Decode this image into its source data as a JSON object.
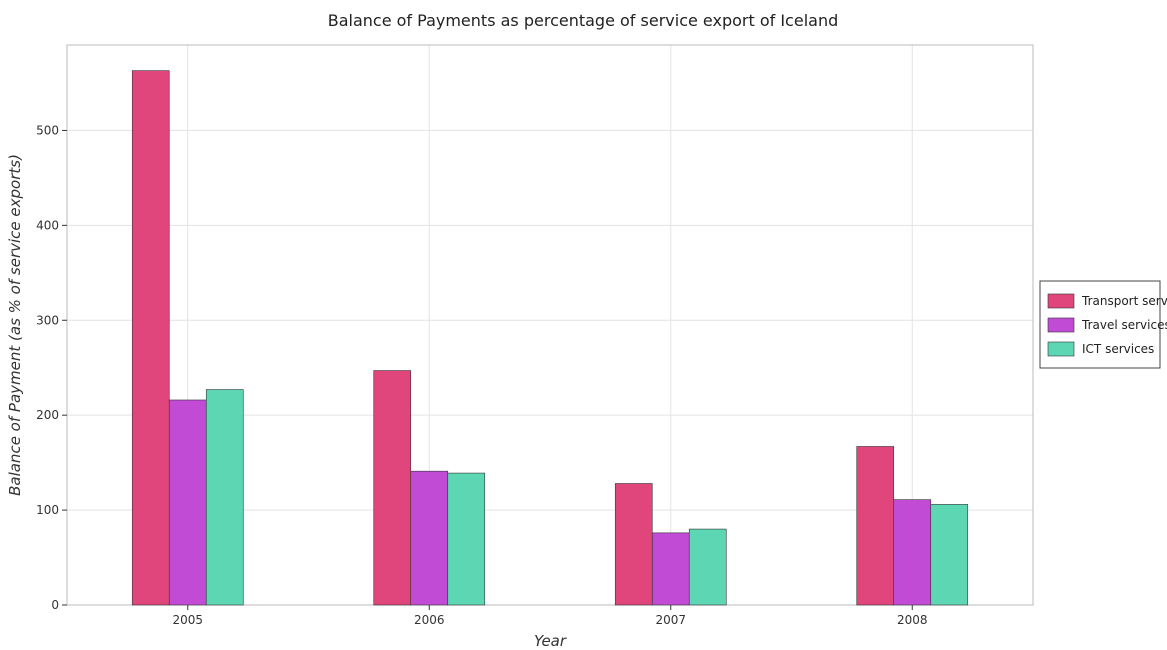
{
  "chart_data": {
    "type": "bar",
    "title": "Balance of Payments as percentage of service export of Iceland",
    "xlabel": "Year",
    "ylabel": "Balance of Payment (as % of service exports)",
    "categories": [
      "2005",
      "2006",
      "2007",
      "2008"
    ],
    "series": [
      {
        "name": "Transport services",
        "color": "#e0457b",
        "values": [
          563,
          247,
          128,
          167
        ]
      },
      {
        "name": "Travel services",
        "color": "#c24bd6",
        "values": [
          216,
          141,
          76,
          111
        ]
      },
      {
        "name": "ICT services",
        "color": "#5cd6b3",
        "values": [
          227,
          139,
          80,
          106
        ]
      }
    ],
    "ylim": [
      0,
      590
    ],
    "yticks": [
      0,
      100,
      200,
      300,
      400,
      500
    ],
    "grid": true,
    "legend_position": "right"
  }
}
